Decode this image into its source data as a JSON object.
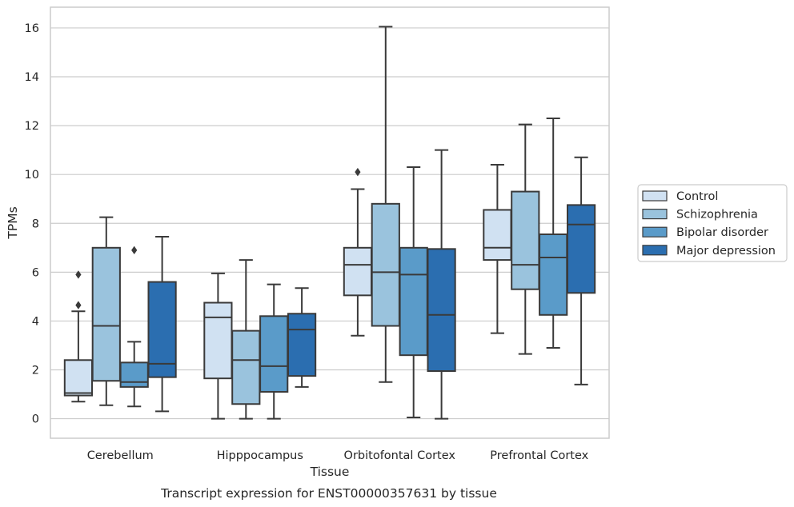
{
  "chart_data": {
    "type": "box",
    "title": "",
    "xlabel": "Tissue",
    "ylabel": "TPMs",
    "caption": "Transcript expression for ENST00000357631 by tissue",
    "ylim": [
      -0.8,
      16.85
    ],
    "yticks": [
      0,
      2,
      4,
      6,
      8,
      10,
      12,
      14,
      16
    ],
    "grid": "horizontal",
    "legend_position": "right",
    "categories": [
      "Cerebellum",
      "Hipppocampus",
      "Orbitofontal Cortex",
      "Prefrontal Cortex"
    ],
    "series": [
      {
        "name": "Control",
        "color": "#d0e1f2",
        "boxes": [
          {
            "whislo": 0.7,
            "q1": 0.95,
            "med": 1.05,
            "q3": 2.4,
            "whishi": 4.4,
            "fliers": [
              4.65,
              5.9
            ]
          },
          {
            "whislo": 0.0,
            "q1": 1.65,
            "med": 4.15,
            "q3": 4.75,
            "whishi": 5.95,
            "fliers": []
          },
          {
            "whislo": 3.4,
            "q1": 5.05,
            "med": 6.3,
            "q3": 7.0,
            "whishi": 9.4,
            "fliers": [
              10.1
            ]
          },
          {
            "whislo": 3.5,
            "q1": 6.5,
            "med": 7.0,
            "q3": 8.55,
            "whishi": 10.4,
            "fliers": []
          }
        ]
      },
      {
        "name": "Schizophrenia",
        "color": "#9ac3dd",
        "boxes": [
          {
            "whislo": 0.55,
            "q1": 1.55,
            "med": 3.8,
            "q3": 7.0,
            "whishi": 8.25,
            "fliers": []
          },
          {
            "whislo": 0.0,
            "q1": 0.6,
            "med": 2.4,
            "q3": 3.6,
            "whishi": 6.5,
            "fliers": []
          },
          {
            "whislo": 1.5,
            "q1": 3.8,
            "med": 6.0,
            "q3": 8.8,
            "whishi": 16.05,
            "fliers": []
          },
          {
            "whislo": 2.65,
            "q1": 5.3,
            "med": 6.3,
            "q3": 9.3,
            "whishi": 12.05,
            "fliers": []
          }
        ]
      },
      {
        "name": "Bipolar disorder",
        "color": "#5a9bc9",
        "boxes": [
          {
            "whislo": 0.5,
            "q1": 1.3,
            "med": 1.5,
            "q3": 2.3,
            "whishi": 3.15,
            "fliers": [
              6.9
            ]
          },
          {
            "whislo": 0.0,
            "q1": 1.1,
            "med": 2.15,
            "q3": 4.2,
            "whishi": 5.5,
            "fliers": []
          },
          {
            "whislo": 0.05,
            "q1": 2.6,
            "med": 5.9,
            "q3": 7.0,
            "whishi": 10.3,
            "fliers": []
          },
          {
            "whislo": 2.9,
            "q1": 4.25,
            "med": 6.6,
            "q3": 7.55,
            "whishi": 12.3,
            "fliers": []
          }
        ]
      },
      {
        "name": "Major depression",
        "color": "#2b6eb0",
        "boxes": [
          {
            "whislo": 0.3,
            "q1": 1.7,
            "med": 2.25,
            "q3": 5.6,
            "whishi": 7.45,
            "fliers": []
          },
          {
            "whislo": 1.3,
            "q1": 1.75,
            "med": 3.65,
            "q3": 4.3,
            "whishi": 5.35,
            "fliers": []
          },
          {
            "whislo": 0.0,
            "q1": 1.95,
            "med": 4.25,
            "q3": 6.95,
            "whishi": 11.0,
            "fliers": []
          },
          {
            "whislo": 1.4,
            "q1": 5.15,
            "med": 7.95,
            "q3": 8.75,
            "whishi": 10.7,
            "fliers": []
          }
        ]
      }
    ]
  }
}
